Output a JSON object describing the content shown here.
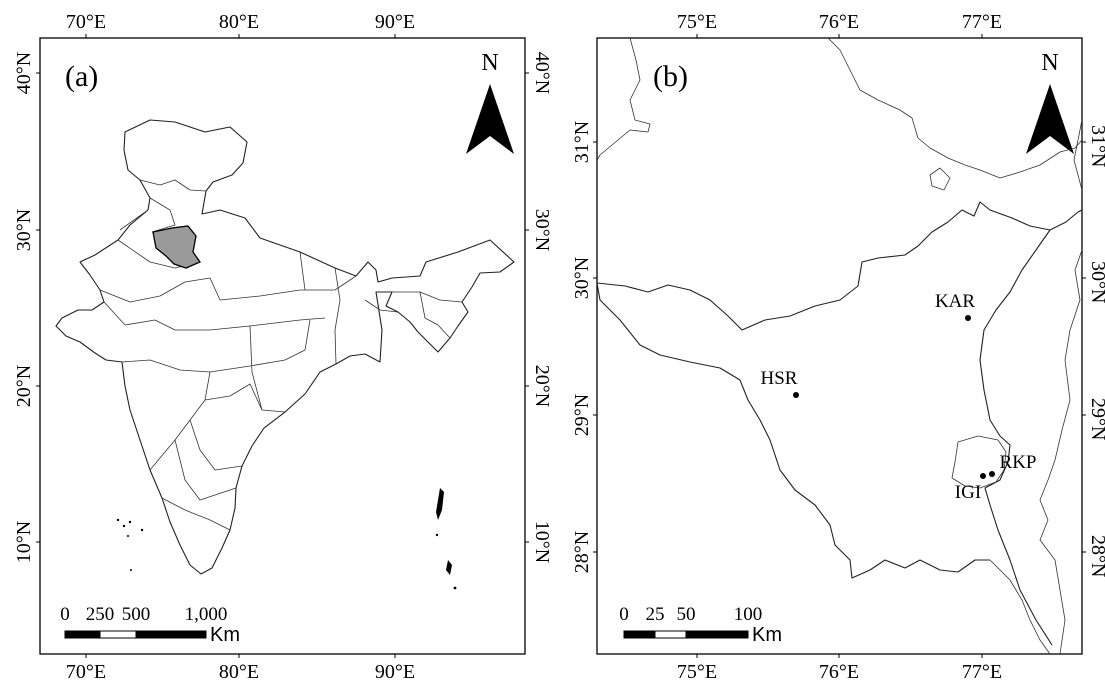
{
  "panel_a": {
    "label": "(a)",
    "north": "N",
    "lon_ticks": [
      "70°E",
      "80°E",
      "90°E"
    ],
    "lat_ticks": [
      "40°N",
      "30°N",
      "20°N",
      "10°N"
    ],
    "scale_ticks": [
      "0",
      "250",
      "500",
      "1,000"
    ],
    "scale_unit": "Km",
    "highlight_region_color": "#9a9a9a"
  },
  "panel_b": {
    "label": "(b)",
    "north": "N",
    "lon_ticks": [
      "75°E",
      "76°E",
      "77°E"
    ],
    "lat_ticks": [
      "31°N",
      "30°N",
      "29°N",
      "28°N"
    ],
    "scale_ticks": [
      "0",
      "25",
      "50",
      "100"
    ],
    "scale_unit": "Km",
    "sites": [
      {
        "name": "KAR"
      },
      {
        "name": "HSR"
      },
      {
        "name": "RKP"
      },
      {
        "name": "IGI"
      }
    ]
  }
}
